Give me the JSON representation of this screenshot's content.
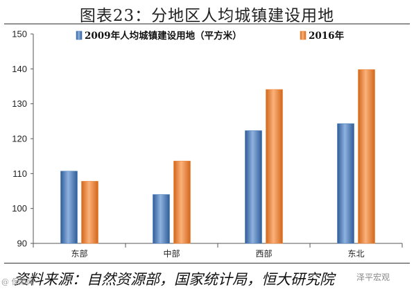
{
  "title": "图表23：分地区人均城镇建设用地",
  "source_note": "资料来源：自然资源部，国家统计局，恒大研究院",
  "watermark_left": "@ 保险网",
  "watermark_right": "泽平宏观",
  "colors": {
    "series_2009": "#4a7ebb",
    "series_2016": "#f0883a"
  },
  "chart_data": {
    "type": "bar",
    "categories": [
      "东部",
      "中部",
      "西部",
      "东北"
    ],
    "series": [
      {
        "name": "2009年人均城镇建设用地（平方米）",
        "values": [
          110.7,
          104.0,
          122.3,
          124.3
        ]
      },
      {
        "name": "2016年",
        "values": [
          107.8,
          113.6,
          134.1,
          139.8
        ]
      }
    ],
    "title": "图表23：分地区人均城镇建设用地",
    "xlabel": "",
    "ylabel": "",
    "ylim": [
      90,
      150
    ],
    "yticks": [
      90,
      100,
      110,
      120,
      130,
      140,
      150
    ],
    "grid": false,
    "legend": "top"
  }
}
